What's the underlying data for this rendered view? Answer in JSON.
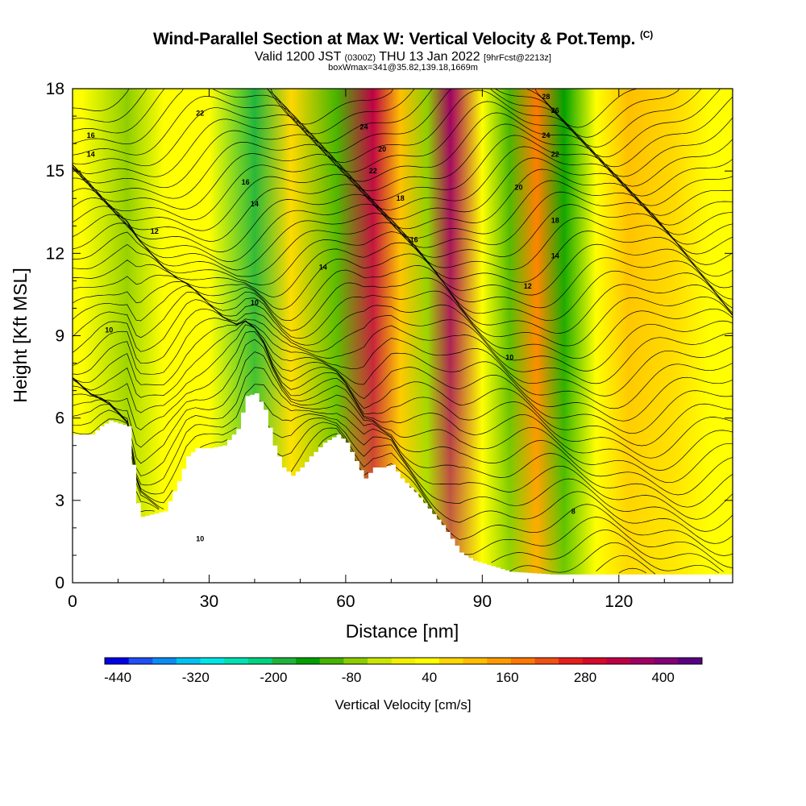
{
  "header": {
    "title": "Wind-Parallel Section at Max W: Vertical Velocity & Pot.Temp.",
    "copyright": "(C)",
    "valid_prefix": "Valid 1200 JST",
    "valid_utc": "(0300Z)",
    "valid_date": "THU 13 Jan 2022",
    "forecast_info": "[9hrFcst@2213z]",
    "box_info": "boxWmax=341@35.82,139.18,1669m"
  },
  "chart_data": {
    "type": "heatmap",
    "xlabel": "Distance [nm]",
    "ylabel": "Height [Kft MSL]",
    "xlim": [
      0,
      145
    ],
    "ylim": [
      0,
      18
    ],
    "x_ticks": [
      "0",
      "30",
      "60",
      "90",
      "120"
    ],
    "y_ticks": [
      "0",
      "3",
      "6",
      "9",
      "12",
      "15",
      "18"
    ],
    "x_tick_values": [
      0,
      30,
      60,
      90,
      120
    ],
    "y_tick_values": [
      0,
      3,
      6,
      9,
      12,
      15,
      18
    ],
    "terrain_kft": [
      [
        0,
        5.4
      ],
      [
        4,
        5.4
      ],
      [
        6,
        5.7
      ],
      [
        8,
        5.9
      ],
      [
        12,
        5.7
      ],
      [
        14,
        2.9
      ],
      [
        15,
        2.4
      ],
      [
        20,
        2.6
      ],
      [
        23,
        3.7
      ],
      [
        25,
        4.6
      ],
      [
        27,
        4.9
      ],
      [
        30,
        4.9
      ],
      [
        33,
        5.0
      ],
      [
        36,
        5.6
      ],
      [
        38,
        6.8
      ],
      [
        40,
        6.9
      ],
      [
        42,
        6.3
      ],
      [
        44,
        5.0
      ],
      [
        46,
        4.2
      ],
      [
        48,
        3.9
      ],
      [
        50,
        4.2
      ],
      [
        52,
        4.6
      ],
      [
        55,
        5.1
      ],
      [
        58,
        5.4
      ],
      [
        60,
        5.1
      ],
      [
        63,
        4.1
      ],
      [
        64,
        3.8
      ],
      [
        66,
        4.2
      ],
      [
        68,
        4.2
      ],
      [
        70,
        4.3
      ],
      [
        72,
        3.8
      ],
      [
        75,
        3.3
      ],
      [
        78,
        2.7
      ],
      [
        81,
        2.1
      ],
      [
        83,
        1.6
      ],
      [
        85,
        1.1
      ],
      [
        88,
        0.8
      ],
      [
        92,
        0.6
      ],
      [
        96,
        0.4
      ],
      [
        105,
        0.3
      ],
      [
        145,
        0.3
      ]
    ],
    "contours": {
      "variable": "Potential Temperature",
      "labels": [
        "8",
        "10",
        "12",
        "14",
        "16",
        "18",
        "20",
        "22",
        "24",
        "26",
        "28"
      ]
    },
    "shading": {
      "variable": "Vertical Velocity [cm/s]",
      "bands_x_center": [
        2,
        12,
        20,
        30,
        40,
        48,
        58,
        66,
        72,
        78,
        83,
        90,
        96,
        102,
        108,
        115,
        122,
        132,
        140
      ],
      "bands_w_cms": [
        30,
        -80,
        40,
        30,
        -200,
        60,
        -120,
        320,
        120,
        -90,
        360,
        40,
        -110,
        170,
        -160,
        40,
        110,
        60,
        20
      ]
    },
    "colorbar": {
      "title": "Vertical Velocity [cm/s]",
      "tick_labels": [
        "-440",
        "-320",
        "-200",
        "-80",
        "40",
        "160",
        "280",
        "400"
      ],
      "tick_values": [
        -440,
        -320,
        -200,
        -80,
        40,
        160,
        280,
        400
      ],
      "min": -460,
      "max": 460,
      "colors": [
        "#0000e6",
        "#1e50f5",
        "#0a8cf5",
        "#00c3f0",
        "#00e6e6",
        "#00e1b4",
        "#00d282",
        "#1eb43c",
        "#00a000",
        "#46b400",
        "#8ccd00",
        "#c8e600",
        "#f0f000",
        "#ffff00",
        "#ffd700",
        "#ffbe00",
        "#ff9b00",
        "#ff7800",
        "#f05014",
        "#e61e1e",
        "#d70a28",
        "#be0046",
        "#a00064",
        "#820078",
        "#5a0082"
      ]
    }
  }
}
